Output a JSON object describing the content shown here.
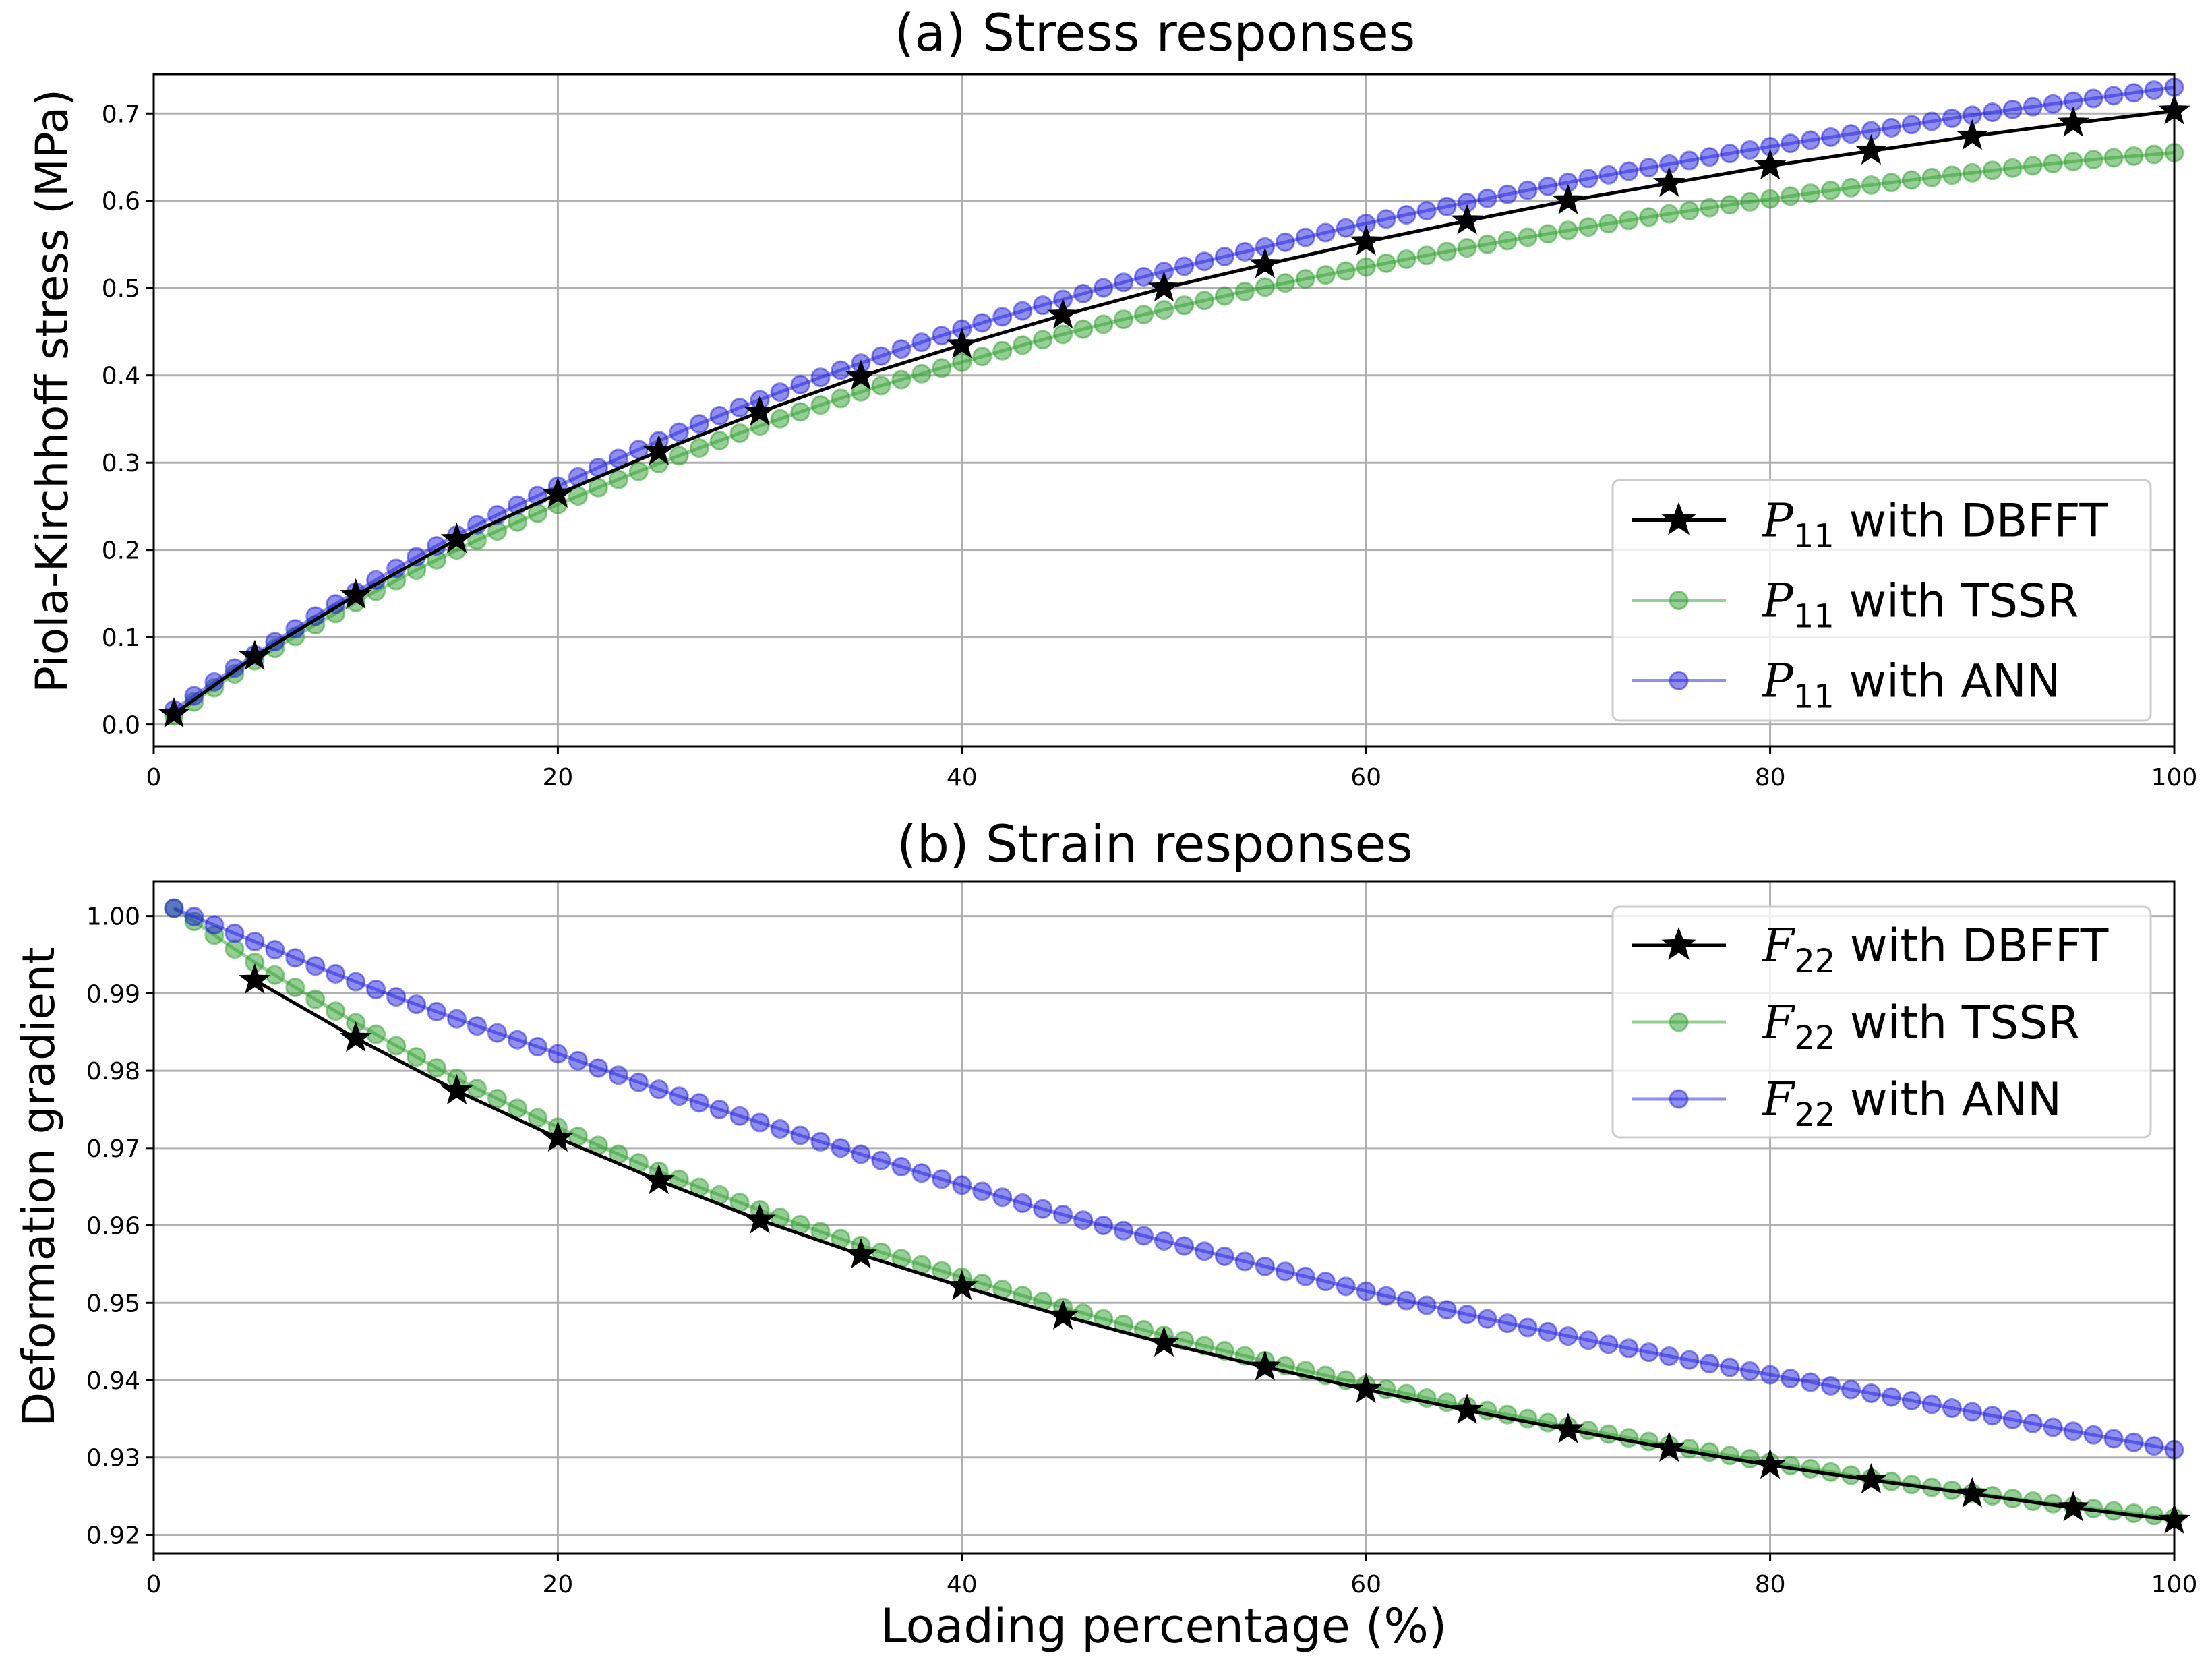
{
  "colors": {
    "dbfft": "#000000",
    "tssr": "#2ca02c",
    "ann": "#1f1fe0",
    "grid": "#b0b0b0",
    "axis": "#000000"
  },
  "figure": {
    "xlabel": "Loading percentage (%)"
  },
  "chart_data": [
    {
      "type": "line",
      "title": "(a) Stress responses",
      "xlabel": "",
      "ylabel": "Piola-Kirchhoff stress (MPa)",
      "xlim": [
        0,
        100
      ],
      "ylim": [
        -0.025,
        0.745
      ],
      "xticks": [
        0,
        20,
        40,
        60,
        80,
        100
      ],
      "xtick_labels": [
        "0",
        "20",
        "40",
        "60",
        "80",
        "100"
      ],
      "yticks": [
        0.0,
        0.1,
        0.2,
        0.3,
        0.4,
        0.5,
        0.6,
        0.7
      ],
      "ytick_labels": [
        "0.0",
        "0.1",
        "0.2",
        "0.3",
        "0.4",
        "0.5",
        "0.6",
        "0.7"
      ],
      "grid": true,
      "legend_position": "lower-right",
      "series": [
        {
          "name": "DBFFT",
          "legend_symbol": "P",
          "legend_sub": "11",
          "legend_text": " with DBFFT",
          "marker": "star",
          "color_key": "dbfft",
          "x": [
            1,
            5,
            10,
            15,
            20,
            25,
            30,
            35,
            40,
            45,
            50,
            55,
            60,
            65,
            70,
            75,
            80,
            85,
            90,
            95,
            100
          ],
          "values": [
            0.012,
            0.078,
            0.148,
            0.212,
            0.264,
            0.313,
            0.358,
            0.399,
            0.435,
            0.469,
            0.5,
            0.527,
            0.553,
            0.577,
            0.6,
            0.62,
            0.64,
            0.657,
            0.674,
            0.689,
            0.703
          ]
        },
        {
          "name": "TSSR",
          "legend_symbol": "P",
          "legend_sub": "11",
          "legend_text": " with TSSR",
          "marker": "circle",
          "color_key": "tssr",
          "x_start": 1,
          "x_end": 100,
          "x_step": 1,
          "anchors_x": [
            1,
            5,
            10,
            15,
            20,
            25,
            30,
            35,
            40,
            45,
            50,
            55,
            60,
            65,
            70,
            75,
            80,
            85,
            90,
            95,
            100
          ],
          "anchors_y": [
            0.01,
            0.073,
            0.14,
            0.2,
            0.252,
            0.299,
            0.342,
            0.381,
            0.415,
            0.447,
            0.475,
            0.501,
            0.524,
            0.546,
            0.566,
            0.585,
            0.602,
            0.618,
            0.632,
            0.645,
            0.655
          ]
        },
        {
          "name": "ANN",
          "legend_symbol": "P",
          "legend_sub": "11",
          "legend_text": " with ANN",
          "marker": "circle",
          "color_key": "ann",
          "x_start": 1,
          "x_end": 100,
          "x_step": 1,
          "anchors_x": [
            1,
            5,
            10,
            15,
            20,
            25,
            30,
            35,
            40,
            45,
            50,
            55,
            60,
            65,
            70,
            75,
            80,
            85,
            90,
            95,
            100
          ],
          "anchors_y": [
            0.017,
            0.08,
            0.152,
            0.217,
            0.273,
            0.325,
            0.372,
            0.414,
            0.453,
            0.487,
            0.519,
            0.547,
            0.574,
            0.598,
            0.621,
            0.642,
            0.662,
            0.68,
            0.698,
            0.714,
            0.73
          ]
        }
      ]
    },
    {
      "type": "line",
      "title": "(b) Strain responses",
      "xlabel": "Loading percentage (%)",
      "ylabel": "Deformation gradient",
      "xlim": [
        0,
        100
      ],
      "ylim": [
        0.9176,
        1.0045
      ],
      "xticks": [
        0,
        20,
        40,
        60,
        80,
        100
      ],
      "xtick_labels": [
        "0",
        "20",
        "40",
        "60",
        "80",
        "100"
      ],
      "yticks": [
        0.92,
        0.93,
        0.94,
        0.95,
        0.96,
        0.97,
        0.98,
        0.99,
        1.0
      ],
      "ytick_labels": [
        "0.92",
        "0.93",
        "0.94",
        "0.95",
        "0.96",
        "0.97",
        "0.98",
        "0.99",
        "1.00"
      ],
      "grid": true,
      "legend_position": "upper-right",
      "series": [
        {
          "name": "DBFFT",
          "legend_symbol": "F",
          "legend_sub": "22",
          "legend_text": " with DBFFT",
          "marker": "star",
          "color_key": "dbfft",
          "x": [
            5,
            10,
            15,
            20,
            25,
            30,
            35,
            40,
            45,
            50,
            55,
            60,
            65,
            70,
            75,
            80,
            85,
            90,
            95,
            100
          ],
          "values": [
            0.9917,
            0.9842,
            0.9774,
            0.9713,
            0.9658,
            0.9607,
            0.9562,
            0.9521,
            0.9483,
            0.9448,
            0.9417,
            0.9388,
            0.9361,
            0.9336,
            0.9312,
            0.929,
            0.9271,
            0.9253,
            0.9235,
            0.9219
          ]
        },
        {
          "name": "TSSR",
          "legend_symbol": "F",
          "legend_sub": "22",
          "legend_text": " with TSSR",
          "marker": "circle",
          "color_key": "tssr",
          "x_start": 1,
          "x_end": 100,
          "x_step": 1,
          "anchors_x": [
            1,
            2,
            5,
            10,
            15,
            20,
            25,
            30,
            35,
            40,
            45,
            50,
            55,
            60,
            65,
            70,
            75,
            80,
            85,
            90,
            95,
            100
          ],
          "anchors_y": [
            1.001,
            0.9993,
            0.994,
            0.9862,
            0.979,
            0.9727,
            0.967,
            0.962,
            0.9574,
            0.9533,
            0.9494,
            0.9458,
            0.9425,
            0.9394,
            0.9366,
            0.934,
            0.9316,
            0.9294,
            0.9273,
            0.9254,
            0.9237,
            0.9222
          ]
        },
        {
          "name": "ANN",
          "legend_symbol": "F",
          "legend_sub": "22",
          "legend_text": " with ANN",
          "marker": "circle",
          "color_key": "ann",
          "x_start": 1,
          "x_end": 100,
          "x_step": 1,
          "anchors_x": [
            1,
            5,
            10,
            15,
            20,
            25,
            30,
            35,
            40,
            45,
            50,
            55,
            60,
            65,
            70,
            75,
            80,
            85,
            90,
            95,
            100
          ],
          "anchors_y": [
            1.001,
            0.9967,
            0.9915,
            0.9867,
            0.9822,
            0.9776,
            0.9733,
            0.9692,
            0.9652,
            0.9614,
            0.958,
            0.9547,
            0.9515,
            0.9485,
            0.9457,
            0.9431,
            0.9407,
            0.9383,
            0.9359,
            0.9334,
            0.931
          ]
        }
      ]
    }
  ]
}
